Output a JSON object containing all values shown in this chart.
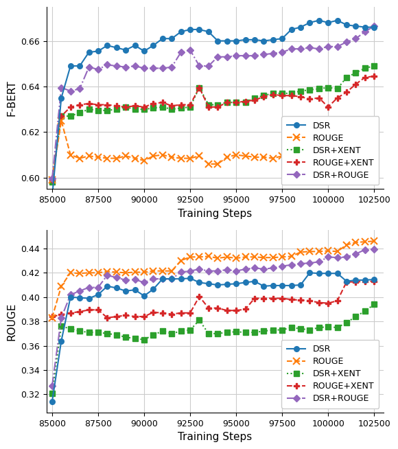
{
  "training_steps": [
    85000,
    85500,
    86000,
    86500,
    87000,
    87500,
    88000,
    88500,
    89000,
    89500,
    90000,
    90500,
    91000,
    91500,
    92000,
    92500,
    93000,
    93500,
    94000,
    94500,
    95000,
    95500,
    96000,
    96500,
    97000,
    97500,
    98000,
    98500,
    99000,
    99500,
    100000,
    100500,
    101000,
    101500,
    102000,
    102500
  ],
  "fbert_DSR": [
    0.5915,
    0.635,
    0.649,
    0.649,
    0.655,
    0.6555,
    0.658,
    0.657,
    0.656,
    0.658,
    0.6555,
    0.658,
    0.661,
    0.661,
    0.664,
    0.665,
    0.665,
    0.664,
    0.66,
    0.66,
    0.66,
    0.6605,
    0.6605,
    0.66,
    0.6605,
    0.661,
    0.665,
    0.666,
    0.668,
    0.669,
    0.668,
    0.669,
    0.667,
    0.6665,
    0.666,
    0.666
  ],
  "fbert_ROUGE": [
    0.599,
    0.625,
    0.61,
    0.6085,
    0.6095,
    0.609,
    0.6085,
    0.6085,
    0.6095,
    0.6085,
    0.6075,
    0.6095,
    0.61,
    0.609,
    0.6085,
    0.6085,
    0.6095,
    0.606,
    0.606,
    0.609,
    0.61,
    0.6095,
    0.609,
    0.609,
    0.6085,
    0.6095,
    0.609,
    0.6095,
    0.61,
    0.609,
    0.6095,
    0.6095,
    0.6095,
    0.61,
    0.612,
    0.612
  ],
  "fbert_DSRXENT": [
    0.598,
    0.627,
    0.627,
    0.6285,
    0.63,
    0.6295,
    0.6295,
    0.63,
    0.631,
    0.63,
    0.63,
    0.6305,
    0.631,
    0.63,
    0.6305,
    0.631,
    0.6395,
    0.632,
    0.632,
    0.633,
    0.633,
    0.633,
    0.635,
    0.636,
    0.637,
    0.637,
    0.637,
    0.638,
    0.6385,
    0.639,
    0.6395,
    0.639,
    0.644,
    0.646,
    0.648,
    0.649
  ],
  "fbert_ROUGEXENT": [
    0.599,
    0.627,
    0.631,
    0.632,
    0.6325,
    0.632,
    0.632,
    0.6315,
    0.631,
    0.6315,
    0.631,
    0.6325,
    0.633,
    0.6315,
    0.632,
    0.632,
    0.6395,
    0.631,
    0.631,
    0.633,
    0.633,
    0.6335,
    0.634,
    0.6355,
    0.6365,
    0.636,
    0.636,
    0.6355,
    0.6345,
    0.635,
    0.631,
    0.635,
    0.6375,
    0.641,
    0.644,
    0.6445
  ],
  "fbert_DSRROUGE": [
    0.5995,
    0.6395,
    0.638,
    0.639,
    0.6485,
    0.6475,
    0.6495,
    0.649,
    0.6485,
    0.649,
    0.648,
    0.648,
    0.648,
    0.6485,
    0.655,
    0.656,
    0.649,
    0.649,
    0.653,
    0.653,
    0.6535,
    0.6535,
    0.6535,
    0.654,
    0.6545,
    0.655,
    0.6565,
    0.6565,
    0.657,
    0.6565,
    0.6575,
    0.6575,
    0.6595,
    0.661,
    0.664,
    0.6665
  ],
  "rouge_DSR": [
    0.314,
    0.364,
    0.4,
    0.3995,
    0.399,
    0.402,
    0.409,
    0.4075,
    0.405,
    0.406,
    0.401,
    0.4065,
    0.415,
    0.415,
    0.415,
    0.4155,
    0.412,
    0.411,
    0.41,
    0.4105,
    0.411,
    0.412,
    0.413,
    0.409,
    0.4095,
    0.4095,
    0.4095,
    0.41,
    0.42,
    0.4195,
    0.4195,
    0.4195,
    0.413,
    0.414,
    0.414,
    0.4145
  ],
  "rouge_ROUGE": [
    0.383,
    0.409,
    0.42,
    0.4195,
    0.42,
    0.42,
    0.421,
    0.4205,
    0.42,
    0.4205,
    0.4205,
    0.4215,
    0.4215,
    0.4215,
    0.43,
    0.433,
    0.433,
    0.4335,
    0.432,
    0.433,
    0.432,
    0.433,
    0.433,
    0.4325,
    0.4325,
    0.433,
    0.4335,
    0.437,
    0.4375,
    0.4375,
    0.438,
    0.4375,
    0.443,
    0.445,
    0.4455,
    0.446
  ],
  "rouge_DSRXENT": [
    0.321,
    0.376,
    0.374,
    0.372,
    0.371,
    0.371,
    0.37,
    0.369,
    0.367,
    0.366,
    0.365,
    0.369,
    0.372,
    0.37,
    0.372,
    0.373,
    0.381,
    0.37,
    0.37,
    0.371,
    0.3715,
    0.371,
    0.371,
    0.372,
    0.373,
    0.373,
    0.375,
    0.374,
    0.373,
    0.375,
    0.3755,
    0.375,
    0.379,
    0.384,
    0.3885,
    0.394
  ],
  "rouge_ROUGEXENT": [
    0.384,
    0.3855,
    0.387,
    0.388,
    0.3895,
    0.3895,
    0.383,
    0.384,
    0.385,
    0.384,
    0.384,
    0.3875,
    0.387,
    0.386,
    0.387,
    0.387,
    0.4005,
    0.391,
    0.391,
    0.389,
    0.389,
    0.39,
    0.399,
    0.399,
    0.399,
    0.399,
    0.398,
    0.3975,
    0.397,
    0.3955,
    0.395,
    0.397,
    0.4125,
    0.4125,
    0.413,
    0.413
  ],
  "rouge_DSRROUGE": [
    0.327,
    0.383,
    0.402,
    0.405,
    0.408,
    0.408,
    0.418,
    0.416,
    0.414,
    0.4145,
    0.412,
    0.415,
    0.415,
    0.415,
    0.4205,
    0.4215,
    0.423,
    0.4215,
    0.4215,
    0.4225,
    0.4215,
    0.423,
    0.424,
    0.423,
    0.424,
    0.4255,
    0.4265,
    0.4275,
    0.428,
    0.429,
    0.433,
    0.4325,
    0.433,
    0.4355,
    0.439,
    0.4395
  ],
  "color_DSR": "#1f77b4",
  "color_ROUGE": "#ff7f0e",
  "color_DSRXENT": "#2ca02c",
  "color_ROUGEXENT": "#d62728",
  "color_DSRROUGE": "#9467bd",
  "fbert_ylim": [
    0.595,
    0.675
  ],
  "rouge_ylim": [
    0.305,
    0.455
  ],
  "xlabel": "Training Steps",
  "ylabel_top": "F-BERT",
  "ylabel_bot": "ROUGE",
  "legend_labels": [
    "DSR",
    "ROUGE",
    "DSR+XENT",
    "ROUGE+XENT",
    "DSR+ROUGE"
  ],
  "xticks": [
    85000,
    87500,
    90000,
    92500,
    95000,
    97500,
    100000,
    102500
  ]
}
